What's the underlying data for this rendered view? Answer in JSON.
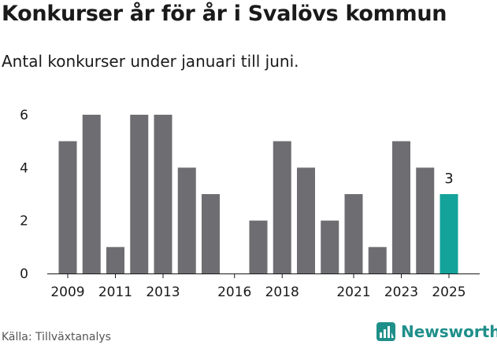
{
  "title": "Konkurser år för år i Svalövs kommun",
  "subtitle": "Antal konkurser under januari till juni.",
  "source": "Källa: Tillväxtanalys",
  "brand": {
    "name": "Newsworthy",
    "icon": "newsworthy-logo-icon"
  },
  "colors": {
    "bar": "#6e6d72",
    "highlight": "#13a39a",
    "axis": "#1a1a1a",
    "brand": "#1f8f8a"
  },
  "chart_data": {
    "type": "bar",
    "categories": [
      "2009",
      "2010",
      "2011",
      "2012",
      "2013",
      "2014",
      "2015",
      "2016",
      "2017",
      "2018",
      "2019",
      "2020",
      "2021",
      "2022",
      "2023",
      "2024",
      "2025"
    ],
    "x_tick_labels": [
      "2009",
      "2011",
      "2013",
      "2016",
      "2018",
      "2021",
      "2023",
      "2025"
    ],
    "values": [
      5,
      6,
      1,
      6,
      6,
      4,
      3,
      0,
      2,
      5,
      4,
      2,
      3,
      1,
      5,
      4,
      3
    ],
    "highlight_category": "2025",
    "data_labels": [
      {
        "category": "2025",
        "text": "3"
      }
    ],
    "ylim": [
      0,
      6
    ],
    "yticks": [
      0,
      2,
      4,
      6
    ],
    "grid": false,
    "xlabel": "",
    "ylabel": ""
  }
}
